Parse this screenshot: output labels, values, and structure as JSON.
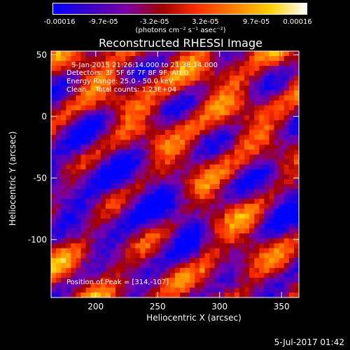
{
  "colorbar": {
    "tick_labels": [
      "-0.00016",
      "-9.7e-05",
      "-3.2e-05",
      "3.2e-05",
      "9.7e-05",
      "0.00016"
    ],
    "units": "(photons cm⁻² s⁻¹ asec⁻²)",
    "colors": [
      "#0000ff",
      "#3a00c8",
      "#7a00a8",
      "#a00000",
      "#ff3000",
      "#ff8000",
      "#ffd000",
      "#ffffff"
    ]
  },
  "chart_data": {
    "type": "heatmap",
    "title": "Reconstructed RHESSI Image",
    "xlabel": "Heliocentric X (arcsec)",
    "ylabel": "Heliocentric Y (arcsec)",
    "xlim": [
      164,
      364
    ],
    "ylim": [
      -147,
      53
    ],
    "x_ticks": [
      200,
      250,
      300,
      350
    ],
    "y_ticks": [
      50,
      0,
      -50,
      -100
    ],
    "value_range": [
      -0.00016,
      0.00016
    ],
    "peak_position": [
      314,
      -107
    ],
    "annotations": [
      "5-Jan-2015 21:26:14.000 to 21:38:14.000",
      "Detectors: 3F 5F 6F 7F 8F 9F, Att 0",
      "Energy Range: 25.0 - 50.0 keV",
      "Clean    Total counts: 1.23E+04"
    ],
    "peak_label": "Position of Peak = [314,-107]"
  },
  "footer": {
    "timestamp": "5-Jul-2017 01:42"
  }
}
